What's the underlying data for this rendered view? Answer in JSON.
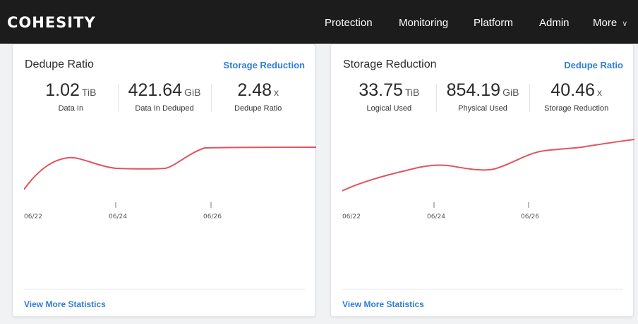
{
  "header": {
    "logo": "COHESITY",
    "nav": [
      {
        "label": "Protection"
      },
      {
        "label": "Monitoring"
      },
      {
        "label": "Platform"
      },
      {
        "label": "Admin"
      },
      {
        "label": "More",
        "chevron": "∨"
      }
    ]
  },
  "cards": [
    {
      "title": "Dedupe Ratio",
      "link": "Storage Reduction",
      "stats": [
        {
          "value": "1.02",
          "unit": "TiB",
          "label": "Data In"
        },
        {
          "value": "421.64",
          "unit": "GiB",
          "label": "Data In Deduped"
        },
        {
          "value": "2.48",
          "unit": "x",
          "label": "Dedupe Ratio"
        }
      ],
      "chart": {
        "x_ticks": [
          "06/22",
          "06/24",
          "06/26"
        ],
        "series_color": "#e0545e"
      },
      "footer": "View More Statistics"
    },
    {
      "title": "Storage Reduction",
      "link": "Dedupe Ratio",
      "stats": [
        {
          "value": "33.75",
          "unit": "TiB",
          "label": "Logical Used"
        },
        {
          "value": "854.19",
          "unit": "GiB",
          "label": "Physical Used"
        },
        {
          "value": "40.46",
          "unit": "x",
          "label": "Storage Reduction"
        }
      ],
      "chart": {
        "x_ticks": [
          "06/22",
          "06/24",
          "06/26"
        ],
        "series_color": "#e0545e"
      },
      "footer": "View More Statistics"
    }
  ]
}
